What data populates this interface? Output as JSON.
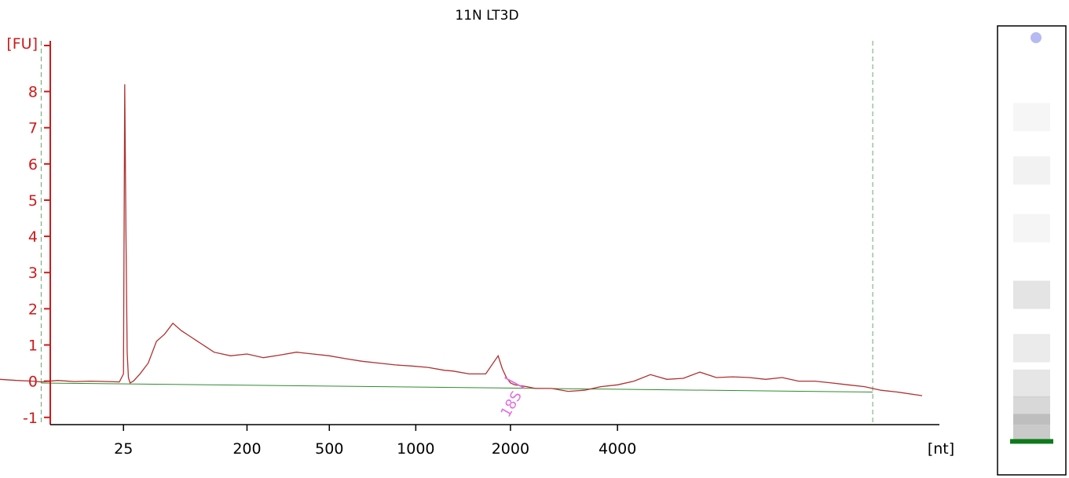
{
  "chart_data": {
    "type": "line",
    "title": "11N LT3D",
    "y_unit_label": "[FU]",
    "x_unit_label": "[nt]",
    "ylim": [
      -1.2,
      9.4
    ],
    "y_ticks": [
      -1,
      0,
      1,
      2,
      3,
      4,
      5,
      6,
      7,
      8
    ],
    "x_ticks": [
      {
        "label": "25",
        "time": 0.2
      },
      {
        "label": "200",
        "time": 0.35
      },
      {
        "label": "500",
        "time": 0.45
      },
      {
        "label": "1000",
        "time": 0.555
      },
      {
        "label": "2000",
        "time": 0.67
      },
      {
        "label": "4000",
        "time": 0.8
      }
    ],
    "x_range": [
      0.05,
      1.17
    ],
    "markers": {
      "start": 0.1,
      "end": 1.11
    },
    "series": [
      {
        "time": [
          0.05,
          0.07,
          0.09,
          0.1,
          0.12,
          0.14,
          0.16,
          0.18,
          0.195,
          0.2,
          0.2015,
          0.203,
          0.2045,
          0.206,
          0.208,
          0.212,
          0.22,
          0.23,
          0.24,
          0.25,
          0.26,
          0.27,
          0.28,
          0.29,
          0.3,
          0.31,
          0.33,
          0.35,
          0.37,
          0.39,
          0.41,
          0.43,
          0.45,
          0.47,
          0.49,
          0.51,
          0.53,
          0.55,
          0.57,
          0.59,
          0.6,
          0.62,
          0.64,
          0.655,
          0.66,
          0.665,
          0.67,
          0.675,
          0.69,
          0.7,
          0.72,
          0.74,
          0.76,
          0.78,
          0.8,
          0.82,
          0.84,
          0.86,
          0.88,
          0.9,
          0.92,
          0.94,
          0.96,
          0.98,
          1.0,
          1.02,
          1.04,
          1.06,
          1.08,
          1.1,
          1.12,
          1.14,
          1.17
        ],
        "values": [
          0.05,
          0.02,
          0.0,
          -0.02,
          0.02,
          -0.01,
          0.0,
          -0.01,
          -0.02,
          0.2,
          8.2,
          4.0,
          0.8,
          0.1,
          -0.05,
          0.0,
          0.2,
          0.5,
          1.1,
          1.3,
          1.6,
          1.4,
          1.25,
          1.1,
          0.95,
          0.8,
          0.7,
          0.75,
          0.65,
          0.72,
          0.8,
          0.75,
          0.7,
          0.62,
          0.55,
          0.5,
          0.45,
          0.42,
          0.38,
          0.3,
          0.28,
          0.2,
          0.2,
          0.7,
          0.35,
          0.1,
          -0.05,
          -0.1,
          -0.15,
          -0.2,
          -0.2,
          -0.28,
          -0.25,
          -0.15,
          -0.1,
          0.0,
          0.18,
          0.05,
          0.08,
          0.25,
          0.1,
          0.12,
          0.1,
          0.05,
          0.1,
          0.0,
          0.0,
          -0.05,
          -0.1,
          -0.15,
          -0.25,
          -0.3,
          -0.4
        ]
      }
    ],
    "baseline": {
      "start_value": -0.05,
      "end_value": -0.3
    },
    "peak_annotations": [
      {
        "label": "18S",
        "time": 0.663
      }
    ],
    "grid": false,
    "colors": {
      "axis": "#cc1a1a",
      "trace": "#b03030",
      "baseline": "#2e8b2e",
      "marker": "#6aa86a",
      "annotation": "#e070e0",
      "gel_band": "#0f7a1c",
      "gel_dot": "#b7b9f2"
    },
    "gel_lane": {
      "marker_band": 0.93,
      "bands": [
        {
          "pos": 0.9,
          "intensity": 0.75
        },
        {
          "pos": 0.86,
          "intensity": 0.55
        },
        {
          "pos": 0.8,
          "intensity": 0.35
        },
        {
          "pos": 0.72,
          "intensity": 0.28
        },
        {
          "pos": 0.6,
          "intensity": 0.38
        },
        {
          "pos": 0.45,
          "intensity": 0.14
        },
        {
          "pos": 0.32,
          "intensity": 0.18
        },
        {
          "pos": 0.2,
          "intensity": 0.12
        }
      ]
    }
  }
}
